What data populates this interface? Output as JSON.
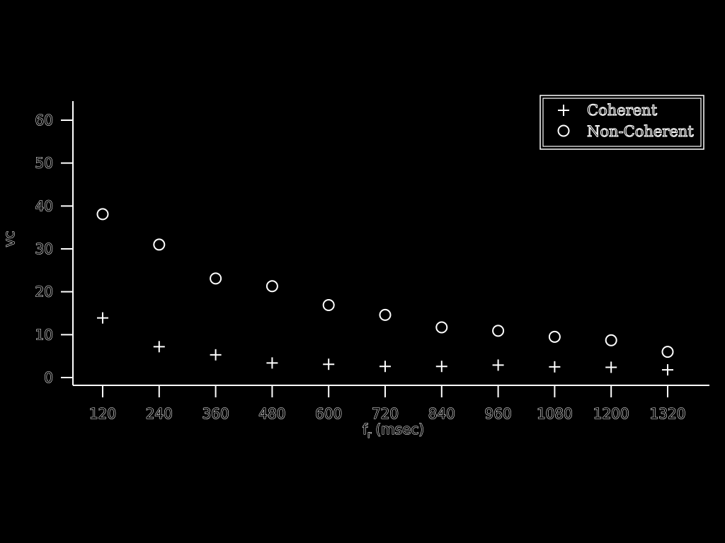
{
  "chart_data": {
    "type": "scatter",
    "title": "",
    "xlabel": "f",
    "xlabel_sub": "r",
    "xlabel_unit": "(msec)",
    "ylabel": "vc",
    "x_ticks": [
      "120",
      "240",
      "360",
      "480",
      "600",
      "720",
      "840",
      "960",
      "1080",
      "1200",
      "1320"
    ],
    "y_ticks": [
      "0",
      "10",
      "20",
      "30",
      "40",
      "50",
      "60"
    ],
    "ylim": [
      0,
      60
    ],
    "grid": false,
    "legend_position": "top-right",
    "colors": {
      "background": "#000000",
      "foreground": "#ffffff"
    },
    "series": [
      {
        "name": "Coherent",
        "marker": "plus",
        "x": [
          120,
          240,
          360,
          480,
          600,
          720,
          840,
          960,
          1080,
          1200,
          1320
        ],
        "y": [
          13.9,
          7.2,
          5.3,
          3.4,
          3.1,
          2.6,
          2.6,
          2.9,
          2.5,
          2.4,
          1.8
        ]
      },
      {
        "name": "Non-Coherent",
        "marker": "circle",
        "x": [
          120,
          240,
          360,
          480,
          600,
          720,
          840,
          960,
          1080,
          1200,
          1320
        ],
        "y": [
          38.1,
          31.0,
          23.1,
          21.3,
          16.9,
          14.6,
          11.7,
          10.9,
          9.5,
          8.7,
          6.0
        ]
      }
    ]
  }
}
